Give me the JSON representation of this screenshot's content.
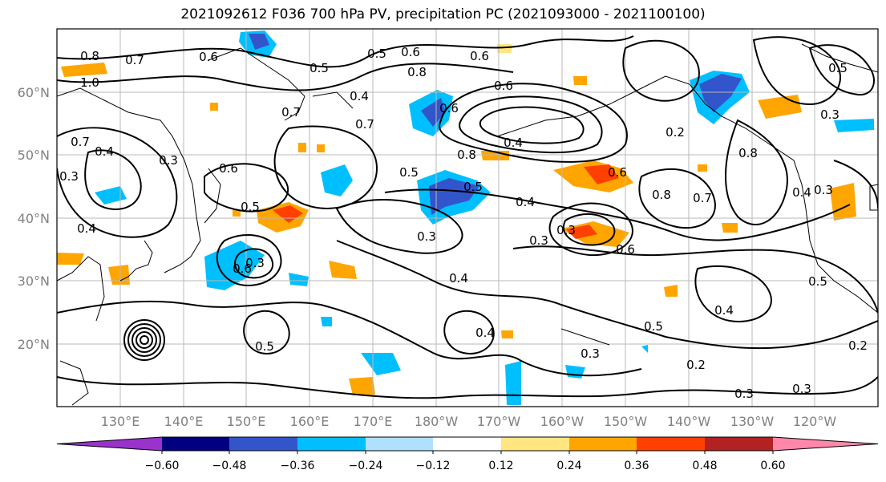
{
  "title": "2021092612 F036 700 hPa PV, precipitation PC (2021093000 - 2021100100)",
  "map": {
    "lat_labels": [
      "60°N",
      "50°N",
      "40°N",
      "30°N",
      "20°N"
    ],
    "lon_labels": [
      "130°E",
      "140°E",
      "150°E",
      "160°E",
      "170°E",
      "180°W",
      "170°W",
      "160°W",
      "150°W",
      "140°W",
      "130°W",
      "120°W"
    ],
    "grid": true,
    "projection_extent": {
      "lon": [
        120,
        250
      ],
      "lat": [
        10,
        70
      ]
    }
  },
  "contours": {
    "variable": "700 hPa PV",
    "labels": [
      "0.8",
      "0.7",
      "1.0",
      "0.6",
      "0.5",
      "0.6",
      "0.7",
      "0.4",
      "0.5",
      "0.7",
      "0.4",
      "0.3",
      "0.3",
      "0.6",
      "0.5",
      "0.4",
      "0.3",
      "0.6",
      "0.7",
      "0.8",
      "0.6",
      "0.6",
      "0.5",
      "0.8",
      "0.5",
      "0.4",
      "0.8",
      "0.7",
      "0.4",
      "0.3",
      "0.6",
      "0.3",
      "0.6",
      "0.3",
      "0.4",
      "0.5",
      "0.4",
      "0.3",
      "0.2",
      "0.6",
      "0.5",
      "0.4",
      "0.5",
      "0.3",
      "0.2",
      "0.3",
      "0.3",
      "0.2",
      "0.5",
      "0.4",
      "0.8",
      "0.3"
    ]
  },
  "colorbar": {
    "ticks": [
      "−0.60",
      "−0.48",
      "−0.36",
      "−0.24",
      "−0.12",
      "0.12",
      "0.24",
      "0.36",
      "0.48",
      "0.60"
    ],
    "colors": [
      "#9933cc",
      "#000080",
      "#3355cc",
      "#00bfff",
      "#b0e0ff",
      "#ffffff",
      "#ffe680",
      "#ffa500",
      "#ff4000",
      "#b22222",
      "#ff88aa"
    ],
    "extend": "both"
  },
  "precip_colors": {
    "neg_strong": "#3355cc",
    "neg_mid": "#00bfff",
    "neg_weak": "#b0e0ff",
    "pos_weak": "#ffe680",
    "pos_mid": "#ffa500",
    "pos_strong": "#ff4000"
  }
}
